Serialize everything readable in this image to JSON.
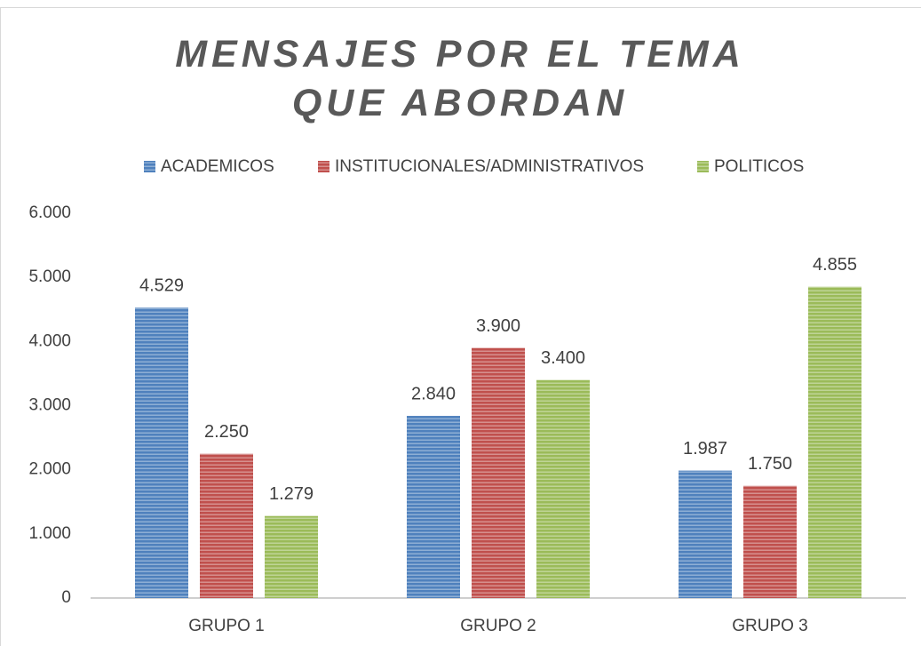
{
  "chart_data": {
    "type": "bar",
    "title": "MENSAJES POR EL TEMA QUE ABORDAN",
    "categories": [
      "GRUPO 1",
      "GRUPO 2",
      "GRUPO 3"
    ],
    "series": [
      {
        "name": "ACADEMICOS",
        "color": "#4f81bd",
        "values": [
          4529,
          2840,
          1987
        ],
        "value_labels": [
          "4.529",
          "2.840",
          "1.987"
        ]
      },
      {
        "name": "INSTITUCIONALES/ADMINISTRATIVOS",
        "color": "#c0504d",
        "values": [
          2250,
          3900,
          1750
        ],
        "value_labels": [
          "2.250",
          "3.900",
          "1.750"
        ]
      },
      {
        "name": "POLITICOS",
        "color": "#9bbb59",
        "values": [
          1279,
          3400,
          4855
        ],
        "value_labels": [
          "1.279",
          "3.400",
          "4.855"
        ]
      }
    ],
    "ylim": [
      0,
      6000
    ],
    "yticks": [
      0,
      {
        "value": 1000,
        "label": "1.000"
      },
      {
        "value": 2000,
        "label": "2.000"
      },
      {
        "value": 3000,
        "label": "3.000"
      },
      {
        "value": 4000,
        "label": "4.000"
      },
      {
        "value": 5000,
        "label": "5.000"
      },
      {
        "value": 6000,
        "label": "6.000"
      }
    ],
    "legend": "top"
  }
}
